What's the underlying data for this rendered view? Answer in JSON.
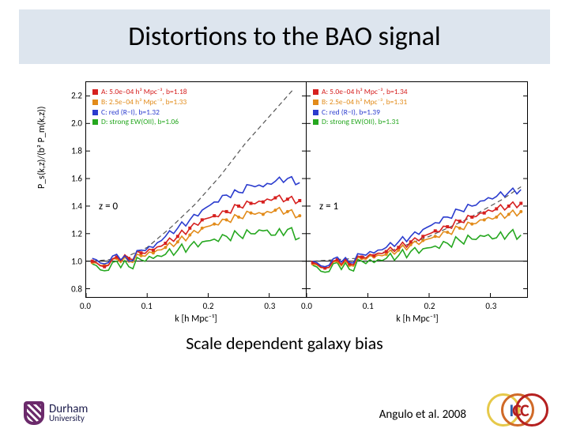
{
  "title": "Distortions to the BAO signal",
  "caption": "Scale dependent galaxy bias",
  "citation": "Angulo et al. 2008",
  "ylabel": "P_s(k,z)/(b² P_m(k,z))",
  "xlabel": "k  [h Mpc⁻¹]",
  "ylim": [
    0.74,
    2.3
  ],
  "yticks": [
    0.8,
    1.0,
    1.2,
    1.4,
    1.6,
    1.8,
    2.0,
    2.2
  ],
  "xlim": [
    0.0,
    0.36
  ],
  "xticks": [
    0.0,
    0.1,
    0.2,
    0.3
  ],
  "colors": {
    "A": "#d6201f",
    "B": "#e28b1a",
    "C": "#2a3bce",
    "D": "#25a71f",
    "dashed": "#555555",
    "axis": "#000000",
    "bg": "#ffffff",
    "titlebar": "#dde5ee"
  },
  "panels": [
    {
      "zlabel": "z = 0",
      "legend": [
        {
          "sw": "A",
          "text": "A:  5.0e–04 h³ Mpc⁻³,  b=1.18"
        },
        {
          "sw": "B",
          "text": "B:  2.5e–04 h³ Mpc⁻³,  b=1.33"
        },
        {
          "sw": "C",
          "text": "C:  red (R−I),  b=1.32"
        },
        {
          "sw": "D",
          "text": "D:  strong EW(OII),  b=1.06"
        }
      ],
      "series": {
        "dashed": [
          [
            0.01,
            1.0
          ],
          [
            0.06,
            1.02
          ],
          [
            0.1,
            1.1
          ],
          [
            0.14,
            1.25
          ],
          [
            0.18,
            1.42
          ],
          [
            0.22,
            1.62
          ],
          [
            0.26,
            1.85
          ],
          [
            0.3,
            2.05
          ],
          [
            0.34,
            2.25
          ]
        ],
        "C": [
          [
            0.01,
            1.02
          ],
          [
            0.03,
            0.98
          ],
          [
            0.05,
            1.05
          ],
          [
            0.07,
            1.0
          ],
          [
            0.09,
            1.08
          ],
          [
            0.11,
            1.1
          ],
          [
            0.13,
            1.18
          ],
          [
            0.15,
            1.24
          ],
          [
            0.17,
            1.3
          ],
          [
            0.19,
            1.37
          ],
          [
            0.21,
            1.43
          ],
          [
            0.23,
            1.48
          ],
          [
            0.25,
            1.5
          ],
          [
            0.27,
            1.55
          ],
          [
            0.29,
            1.54
          ],
          [
            0.31,
            1.58
          ],
          [
            0.33,
            1.6
          ],
          [
            0.35,
            1.57
          ]
        ],
        "A": [
          [
            0.01,
            1.0
          ],
          [
            0.03,
            0.96
          ],
          [
            0.05,
            1.03
          ],
          [
            0.07,
            1.02
          ],
          [
            0.09,
            1.06
          ],
          [
            0.11,
            1.08
          ],
          [
            0.13,
            1.13
          ],
          [
            0.15,
            1.18
          ],
          [
            0.17,
            1.24
          ],
          [
            0.19,
            1.3
          ],
          [
            0.21,
            1.33
          ],
          [
            0.23,
            1.36
          ],
          [
            0.25,
            1.4
          ],
          [
            0.27,
            1.42
          ],
          [
            0.29,
            1.43
          ],
          [
            0.31,
            1.46
          ],
          [
            0.33,
            1.45
          ],
          [
            0.35,
            1.44
          ]
        ],
        "B": [
          [
            0.01,
            0.99
          ],
          [
            0.03,
            0.97
          ],
          [
            0.05,
            1.02
          ],
          [
            0.07,
            1.0
          ],
          [
            0.09,
            1.04
          ],
          [
            0.11,
            1.06
          ],
          [
            0.13,
            1.1
          ],
          [
            0.15,
            1.14
          ],
          [
            0.17,
            1.19
          ],
          [
            0.19,
            1.24
          ],
          [
            0.21,
            1.27
          ],
          [
            0.23,
            1.3
          ],
          [
            0.25,
            1.32
          ],
          [
            0.27,
            1.35
          ],
          [
            0.29,
            1.34
          ],
          [
            0.31,
            1.37
          ],
          [
            0.33,
            1.36
          ],
          [
            0.35,
            1.33
          ]
        ],
        "D": [
          [
            0.01,
            0.98
          ],
          [
            0.03,
            0.93
          ],
          [
            0.05,
            1.0
          ],
          [
            0.07,
            0.96
          ],
          [
            0.09,
            1.01
          ],
          [
            0.11,
            1.02
          ],
          [
            0.13,
            1.05
          ],
          [
            0.15,
            1.08
          ],
          [
            0.17,
            1.11
          ],
          [
            0.19,
            1.14
          ],
          [
            0.21,
            1.16
          ],
          [
            0.23,
            1.18
          ],
          [
            0.25,
            1.19
          ],
          [
            0.27,
            1.2
          ],
          [
            0.29,
            1.22
          ],
          [
            0.31,
            1.19
          ],
          [
            0.33,
            1.23
          ],
          [
            0.35,
            1.17
          ]
        ]
      }
    },
    {
      "zlabel": "z = 1",
      "legend": [
        {
          "sw": "A",
          "text": "A:  5.0e–04 h³ Mpc⁻³,  b=1.34"
        },
        {
          "sw": "B",
          "text": "B:  2.5e–04 h³ Mpc⁻³,  b=1.31"
        },
        {
          "sw": "C",
          "text": "C:  red (R−I),  b=1.39"
        },
        {
          "sw": "D",
          "text": "D:  strong EW(OII),  b=1.31"
        }
      ],
      "series": {
        "dashed": [
          [
            0.01,
            1.0
          ],
          [
            0.08,
            1.02
          ],
          [
            0.14,
            1.08
          ],
          [
            0.2,
            1.18
          ],
          [
            0.26,
            1.3
          ],
          [
            0.32,
            1.45
          ],
          [
            0.35,
            1.54
          ]
        ],
        "C": [
          [
            0.01,
            1.0
          ],
          [
            0.03,
            0.96
          ],
          [
            0.05,
            1.03
          ],
          [
            0.07,
            0.99
          ],
          [
            0.09,
            1.05
          ],
          [
            0.11,
            1.06
          ],
          [
            0.13,
            1.1
          ],
          [
            0.15,
            1.14
          ],
          [
            0.17,
            1.18
          ],
          [
            0.19,
            1.23
          ],
          [
            0.21,
            1.28
          ],
          [
            0.23,
            1.32
          ],
          [
            0.25,
            1.37
          ],
          [
            0.27,
            1.4
          ],
          [
            0.29,
            1.44
          ],
          [
            0.31,
            1.47
          ],
          [
            0.33,
            1.5
          ],
          [
            0.35,
            1.52
          ]
        ],
        "A": [
          [
            0.01,
            0.99
          ],
          [
            0.03,
            0.95
          ],
          [
            0.05,
            1.01
          ],
          [
            0.07,
            0.98
          ],
          [
            0.09,
            1.03
          ],
          [
            0.11,
            1.04
          ],
          [
            0.13,
            1.07
          ],
          [
            0.15,
            1.1
          ],
          [
            0.17,
            1.14
          ],
          [
            0.19,
            1.18
          ],
          [
            0.21,
            1.22
          ],
          [
            0.23,
            1.25
          ],
          [
            0.25,
            1.29
          ],
          [
            0.27,
            1.32
          ],
          [
            0.29,
            1.35
          ],
          [
            0.31,
            1.38
          ],
          [
            0.33,
            1.4
          ],
          [
            0.35,
            1.42
          ]
        ],
        "B": [
          [
            0.01,
            0.98
          ],
          [
            0.03,
            0.95
          ],
          [
            0.05,
            1.0
          ],
          [
            0.07,
            0.97
          ],
          [
            0.09,
            1.02
          ],
          [
            0.11,
            1.03
          ],
          [
            0.13,
            1.05
          ],
          [
            0.15,
            1.08
          ],
          [
            0.17,
            1.12
          ],
          [
            0.19,
            1.15
          ],
          [
            0.21,
            1.18
          ],
          [
            0.23,
            1.21
          ],
          [
            0.25,
            1.24
          ],
          [
            0.27,
            1.27
          ],
          [
            0.29,
            1.3
          ],
          [
            0.31,
            1.32
          ],
          [
            0.33,
            1.34
          ],
          [
            0.35,
            1.36
          ]
        ],
        "D": [
          [
            0.01,
            0.97
          ],
          [
            0.03,
            0.92
          ],
          [
            0.05,
            0.99
          ],
          [
            0.07,
            0.94
          ],
          [
            0.09,
            1.0
          ],
          [
            0.11,
            0.99
          ],
          [
            0.13,
            1.02
          ],
          [
            0.15,
            1.04
          ],
          [
            0.17,
            1.07
          ],
          [
            0.19,
            1.09
          ],
          [
            0.21,
            1.11
          ],
          [
            0.23,
            1.13
          ],
          [
            0.25,
            1.15
          ],
          [
            0.27,
            1.16
          ],
          [
            0.29,
            1.18
          ],
          [
            0.31,
            1.17
          ],
          [
            0.33,
            1.2
          ],
          [
            0.35,
            1.19
          ]
        ]
      }
    }
  ],
  "logos": {
    "durham": {
      "line1": "Durham",
      "line2": "University",
      "color": "#6b2a6b"
    },
    "icc": "ICC"
  }
}
